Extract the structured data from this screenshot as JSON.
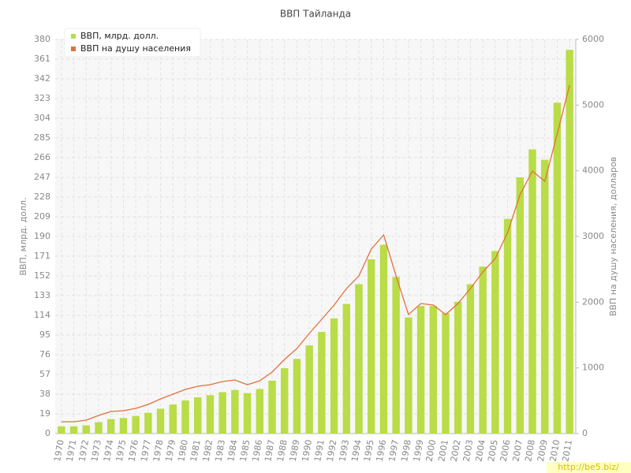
{
  "chart_data": {
    "type": "bar",
    "title": "ВВП Тайланда",
    "categories": [
      "1970",
      "1971",
      "1972",
      "1973",
      "1974",
      "1975",
      "1976",
      "1977",
      "1978",
      "1979",
      "1980",
      "1981",
      "1982",
      "1983",
      "1984",
      "1985",
      "1986",
      "1987",
      "1988",
      "1989",
      "1990",
      "1991",
      "1992",
      "1993",
      "1994",
      "1995",
      "1996",
      "1997",
      "1998",
      "1999",
      "2000",
      "2001",
      "2002",
      "2003",
      "2004",
      "2005",
      "2006",
      "2007",
      "2008",
      "2009",
      "2010",
      "2011"
    ],
    "series": [
      {
        "name": "ВВП, млрд. долл.",
        "type": "bar",
        "color": "#b9dc47",
        "values": [
          7,
          7,
          8,
          11,
          14,
          15,
          17,
          20,
          24,
          28,
          32,
          35,
          37,
          40,
          42,
          39,
          43,
          51,
          63,
          72,
          85,
          98,
          111,
          125,
          144,
          168,
          182,
          151,
          112,
          123,
          123,
          116,
          127,
          144,
          161,
          176,
          207,
          247,
          274,
          264,
          319,
          370
        ]
      },
      {
        "name": "ВВП на душу населения",
        "type": "line",
        "color": "#e2703c",
        "axis": "y2",
        "values": [
          180,
          180,
          204,
          276,
          336,
          348,
          384,
          444,
          528,
          600,
          672,
          720,
          744,
          792,
          816,
          744,
          804,
          936,
          1128,
          1296,
          1524,
          1740,
          1956,
          2208,
          2400,
          2808,
          3024,
          2400,
          1812,
          1980,
          1956,
          1812,
          1980,
          2208,
          2460,
          2664,
          3060,
          3636,
          3996,
          3840,
          4560,
          5304
        ]
      }
    ],
    "ylabel": "ВВП, млрд. долл.",
    "y2label": "ВВП на душу населения, долларов",
    "ylim": [
      0,
      380
    ],
    "yticks": [
      0,
      19,
      38,
      57,
      76,
      95,
      114,
      133,
      152,
      171,
      190,
      209,
      228,
      247,
      266,
      285,
      304,
      323,
      342,
      361,
      380
    ],
    "y2lim": [
      0,
      6000
    ],
    "y2ticks": [
      0,
      1000,
      2000,
      3000,
      4000,
      5000,
      6000
    ],
    "grid": true,
    "legend": "upper left",
    "watermark": "http://be5.biz/"
  }
}
